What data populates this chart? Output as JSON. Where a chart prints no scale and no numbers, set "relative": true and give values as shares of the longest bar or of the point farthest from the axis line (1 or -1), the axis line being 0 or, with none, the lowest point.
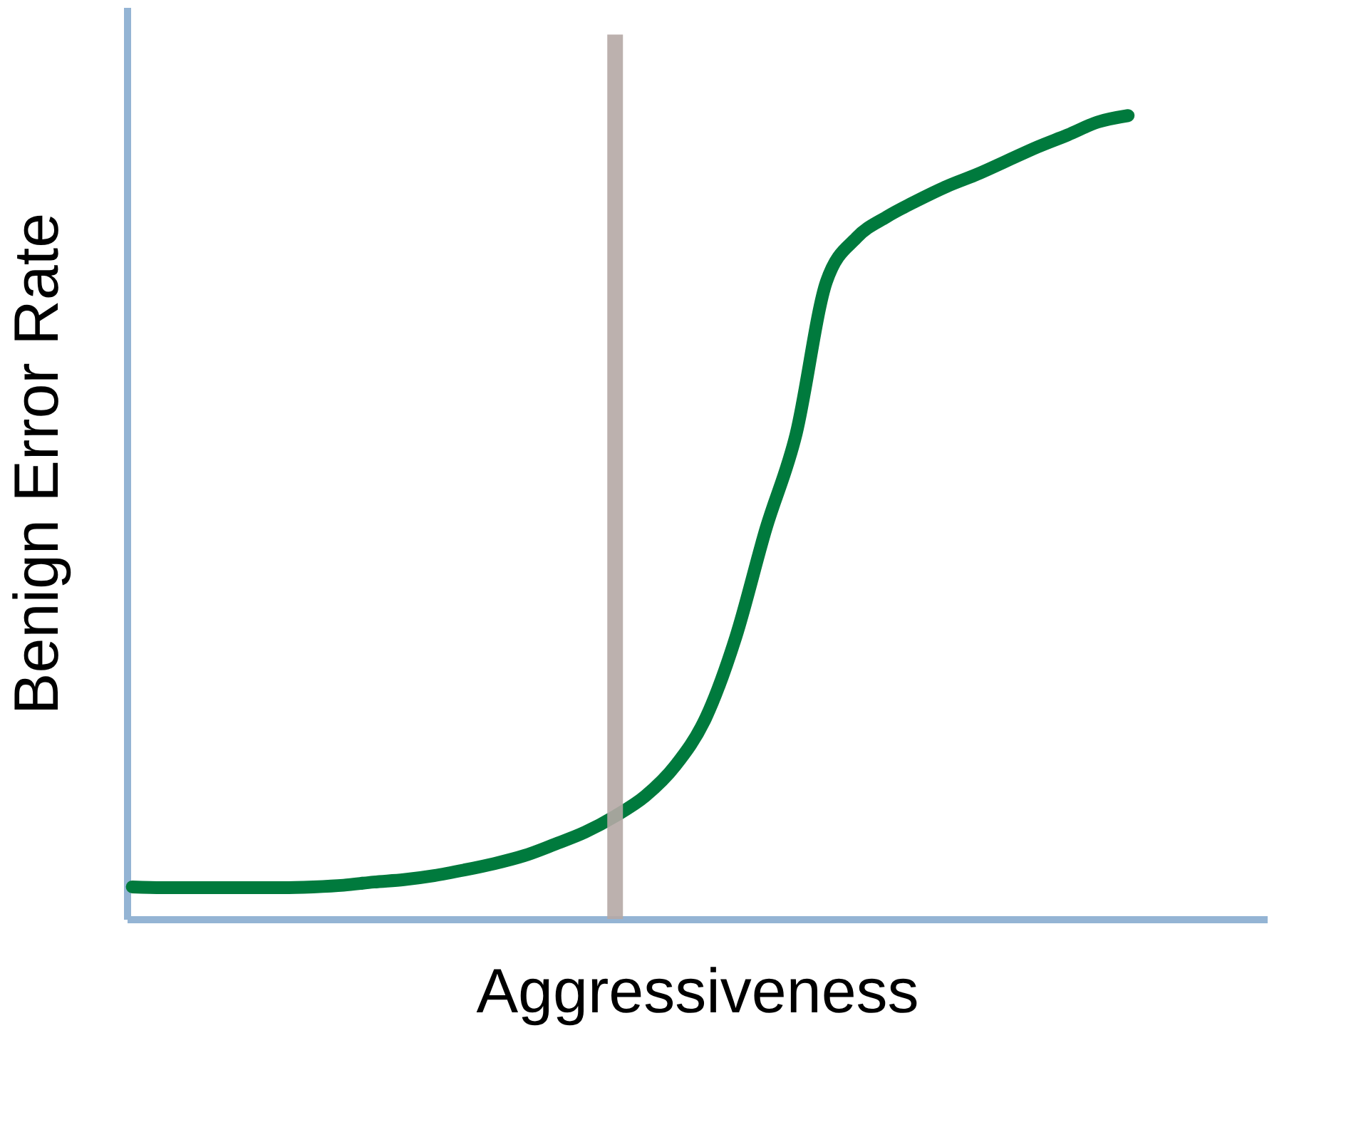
{
  "chart_data": {
    "type": "line",
    "relative": true,
    "xlabel": "Aggressiveness",
    "ylabel": "Benign Error Rate",
    "categories": [
      null,
      null,
      null,
      null,
      null,
      null,
      null,
      null,
      null,
      null,
      null,
      null,
      null,
      null,
      null,
      null,
      null,
      null,
      null,
      null,
      null,
      null,
      null,
      null,
      null,
      null,
      null,
      null,
      null,
      null,
      null,
      null,
      null,
      null
    ],
    "series": [
      {
        "color": "#007a3d",
        "values": [
          0.04,
          0.039,
          0.039,
          0.039,
          0.039,
          0.039,
          0.04,
          0.042,
          0.046,
          0.049,
          0.054,
          0.061,
          0.069,
          0.079,
          0.093,
          0.108,
          0.128,
          0.153,
          0.191,
          0.25,
          0.351,
          0.486,
          0.604,
          0.793,
          0.848,
          0.874,
          0.894,
          0.912,
          0.927,
          0.944,
          0.961,
          0.976,
          0.992,
          1
        ]
      }
    ],
    "grid": false
  }
}
